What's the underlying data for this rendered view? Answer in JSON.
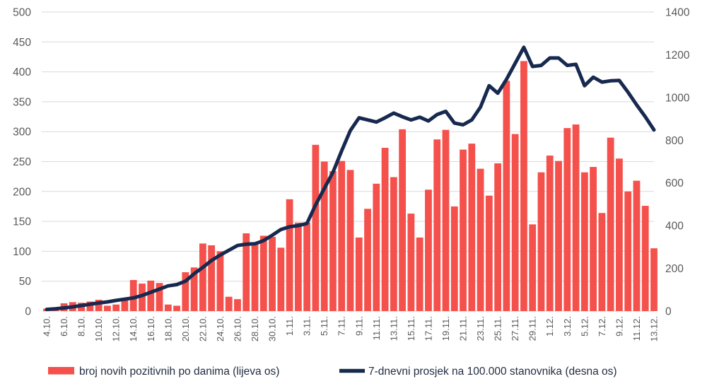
{
  "chart_data": {
    "type": "bar",
    "combo": "bar+line",
    "title": "",
    "categories": [
      "4.10.",
      "5.10.",
      "6.10.",
      "7.10.",
      "8.10.",
      "9.10.",
      "10.10.",
      "11.10.",
      "12.10.",
      "13.10.",
      "14.10.",
      "15.10.",
      "16.10.",
      "17.10.",
      "18.10.",
      "19.10.",
      "20.10.",
      "21.10.",
      "22.10.",
      "23.10.",
      "24.10.",
      "25.10.",
      "26.10.",
      "27.10.",
      "28.10.",
      "29.10.",
      "30.10.",
      "31.10.",
      "1.11.",
      "2.11.",
      "3.11.",
      "4.11.",
      "5.11.",
      "6.11.",
      "7.11.",
      "8.11.",
      "9.11.",
      "10.11.",
      "11.11.",
      "12.11.",
      "13.11.",
      "14.11.",
      "15.11.",
      "16.11.",
      "17.11.",
      "18.11.",
      "19.11.",
      "20.11.",
      "21.11.",
      "22.11.",
      "23.11.",
      "24.11.",
      "25.11.",
      "26.11.",
      "27.11.",
      "28.11.",
      "29.11.",
      "30.11.",
      "1.12.",
      "2.12.",
      "3.12.",
      "4.12.",
      "5.12.",
      "6.12.",
      "7.12.",
      "8.12.",
      "9.12.",
      "10.12.",
      "11.12.",
      "12.12.",
      "13.12."
    ],
    "x_label_every": 2,
    "series": [
      {
        "name": "broj novih pozitivnih po danima (lijeva os)",
        "type": "bar",
        "axis": "left",
        "color": "#f4514c",
        "values": [
          4,
          6,
          13,
          15,
          14,
          16,
          19,
          9,
          11,
          20,
          52,
          46,
          51,
          47,
          11,
          9,
          65,
          73,
          113,
          110,
          100,
          24,
          20,
          130,
          115,
          126,
          124,
          106,
          187,
          148,
          148,
          278,
          250,
          234,
          251,
          236,
          123,
          171,
          213,
          273,
          224,
          304,
          163,
          123,
          203,
          287,
          303,
          175,
          270,
          280,
          238,
          193,
          247,
          385,
          296,
          418,
          145,
          232,
          260,
          251,
          306,
          312,
          232,
          241,
          164,
          290,
          255,
          200,
          218,
          176,
          105
        ]
      },
      {
        "name": "7-dnevni prosjek na 100.000 stanovnika (desna os)",
        "type": "line",
        "axis": "right",
        "color": "#17294f",
        "values": [
          8,
          11,
          15,
          20,
          26,
          32,
          38,
          43,
          50,
          56,
          62,
          73,
          88,
          103,
          118,
          124,
          140,
          175,
          205,
          237,
          262,
          285,
          307,
          313,
          315,
          330,
          355,
          382,
          395,
          400,
          410,
          497,
          574,
          650,
          750,
          845,
          905,
          895,
          885,
          905,
          927,
          910,
          895,
          908,
          890,
          920,
          935,
          880,
          872,
          895,
          955,
          1055,
          1020,
          1085,
          1160,
          1235,
          1145,
          1150,
          1185,
          1185,
          1150,
          1155,
          1055,
          1095,
          1072,
          1078,
          1080,
          1025,
          965,
          910,
          848
        ]
      }
    ],
    "left_axis": {
      "min": 0,
      "max": 500,
      "step": 50,
      "ticks": [
        0,
        50,
        100,
        150,
        200,
        250,
        300,
        350,
        400,
        450,
        500
      ]
    },
    "right_axis": {
      "min": 0,
      "max": 1400,
      "step": 200,
      "ticks": [
        0,
        200,
        400,
        600,
        800,
        1000,
        1200,
        1400
      ]
    },
    "grid": true,
    "legend_position": "bottom",
    "colors": {
      "grid": "#d9d9d9",
      "axis_text": "#595959",
      "legend_text": "#222d42",
      "background": "#ffffff"
    }
  }
}
